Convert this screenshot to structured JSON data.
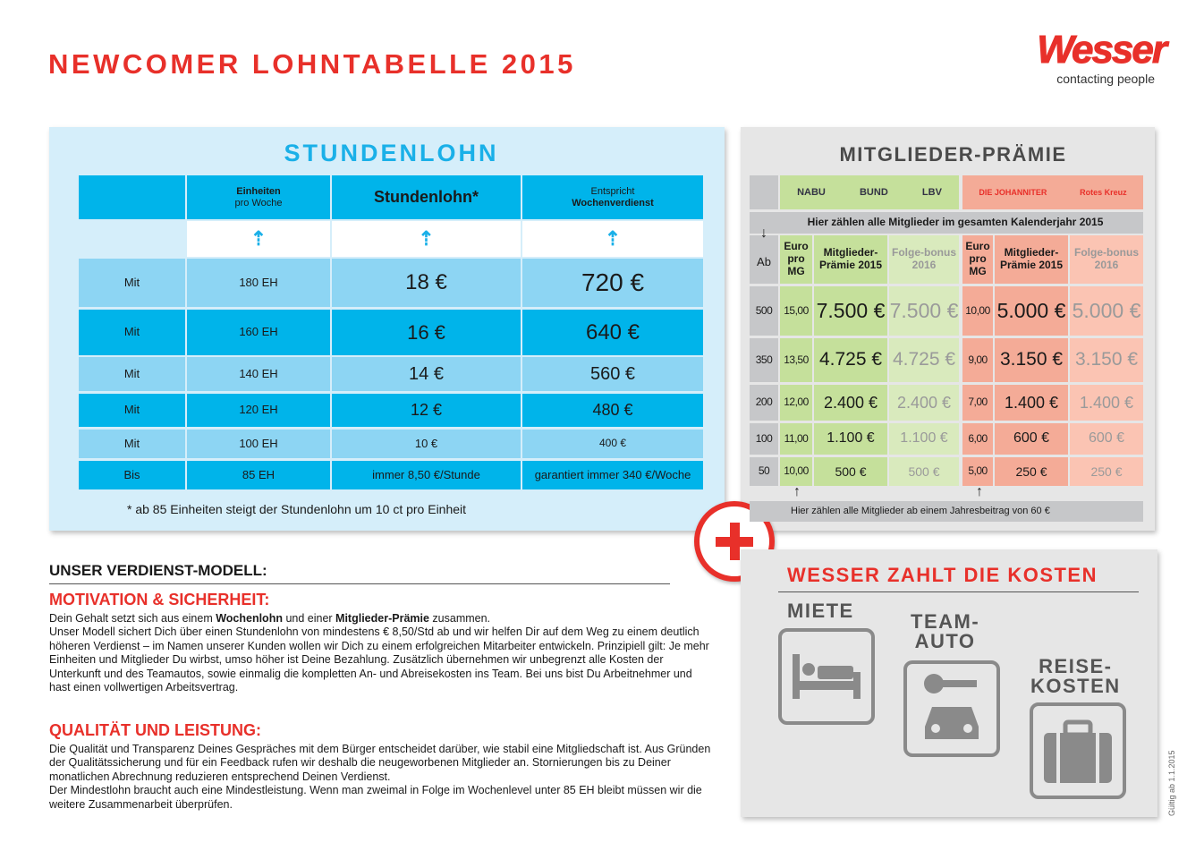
{
  "title": "NEWCOMER LOHNTABELLE 2015",
  "logo": {
    "brand": "Wesser",
    "tagline": "contacting people"
  },
  "stundenlohn": {
    "title": "STUNDENLOHN",
    "headers": {
      "einheiten_1": "Einheiten",
      "einheiten_2": "pro Woche",
      "stundenlohn": "Stundenlohn*",
      "verdienst_1": "Entspricht",
      "verdienst_2": "Wochenverdienst"
    },
    "rows": [
      {
        "label": "Mit",
        "units": "180 EH",
        "rate": "18 €",
        "weekly": "720 €"
      },
      {
        "label": "Mit",
        "units": "160 EH",
        "rate": "16 €",
        "weekly": "640 €"
      },
      {
        "label": "Mit",
        "units": "140 EH",
        "rate": "14 €",
        "weekly": "560 €"
      },
      {
        "label": "Mit",
        "units": "120 EH",
        "rate": "12 €",
        "weekly": "480 €"
      },
      {
        "label": "Mit",
        "units": "100 EH",
        "rate": "10 €",
        "weekly": "400 €"
      },
      {
        "label": "Bis",
        "units": "85 EH",
        "rate": "immer 8,50 €/Stunde",
        "weekly": "garantiert immer 340 €/Woche"
      }
    ],
    "footnote": "* ab 85 Einheiten steigt der Stundenlohn um 10 ct pro Einheit"
  },
  "praemie": {
    "title": "MITGLIEDER-PRÄMIE",
    "logos_green": [
      "NABU",
      "BUND",
      "LBV"
    ],
    "logos_red": [
      "DIE JOHANNITER",
      "Rotes Kreuz"
    ],
    "calendar_note": "Hier zählen alle Mitglieder im gesamten Kalenderjahr 2015",
    "headers": {
      "ab": "Ab",
      "euro": "Euro pro MG",
      "praemie": "Mitglieder-Prämie 2015",
      "folge": "Folge-bonus 2016"
    },
    "rows": [
      {
        "ab": "500",
        "g_euro": "15,00",
        "g_pr": "7.500 €",
        "g_fb": "7.500 €",
        "r_euro": "10,00",
        "r_pr": "5.000 €",
        "r_fb": "5.000 €"
      },
      {
        "ab": "350",
        "g_euro": "13,50",
        "g_pr": "4.725 €",
        "g_fb": "4.725 €",
        "r_euro": "9,00",
        "r_pr": "3.150 €",
        "r_fb": "3.150 €"
      },
      {
        "ab": "200",
        "g_euro": "12,00",
        "g_pr": "2.400 €",
        "g_fb": "2.400 €",
        "r_euro": "7,00",
        "r_pr": "1.400 €",
        "r_fb": "1.400 €"
      },
      {
        "ab": "100",
        "g_euro": "11,00",
        "g_pr": "1.100 €",
        "g_fb": "1.100 €",
        "r_euro": "6,00",
        "r_pr": "600 €",
        "r_fb": "600 €"
      },
      {
        "ab": "50",
        "g_euro": "10,00",
        "g_pr": "500 €",
        "g_fb": "500 €",
        "r_euro": "5,00",
        "r_pr": "250 €",
        "r_fb": "250 €"
      }
    ],
    "year_note": "Hier zählen alle Mitglieder ab einem Jahresbeitrag von 60 €"
  },
  "modell": {
    "heading": "UNSER VERDIENST-MODELL:",
    "s1_title": "MOTIVATION & SICHERHEIT:",
    "s1_a": "Dein Gehalt setzt sich aus einem ",
    "s1_b": "Wochenlohn",
    "s1_c": " und einer ",
    "s1_d": "Mitglieder-Prämie",
    "s1_e": " zusammen.",
    "s1_body": "Unser Modell sichert Dich über einen Stundenlohn von mindestens € 8,50/Std ab und wir helfen Dir auf dem Weg zu einem deutlich höheren Verdienst – im Namen unserer Kunden wollen wir Dich zu einem erfolgreichen Mitarbeiter entwickeln. Prinzipiell gilt: Je mehr Einheiten und Mitglieder Du wirbst, umso höher ist Deine Bezahlung. Zusätzlich übernehmen wir unbegrenzt alle Kosten der Unterkunft und des Teamautos, sowie einmalig die kompletten An- und Abreisekosten ins Team. Bei uns bist Du Arbeitnehmer und hast einen vollwertigen Arbeitsvertrag.",
    "s2_title": "QUALITÄT UND LEISTUNG:",
    "s2_body1": "Die Qualität und Transparenz Deines Gespräches mit dem Bürger entscheidet darüber, wie stabil eine Mitgliedschaft ist. Aus Gründen der Qualitätssicherung und für ein Feedback rufen wir deshalb die neugeworbenen Mitglieder an. Stornierungen bis zu Deiner monatlichen Abrechnung reduzieren entsprechend Deinen Verdienst.",
    "s2_body2": "Der Mindestlohn braucht auch eine Mindestleistung. Wenn man zweimal in Folge im Wochenlevel unter 85 EH bleibt müssen wir die weitere Zusammenarbeit überprüfen."
  },
  "kosten": {
    "title": "WESSER ZAHLT DIE KOSTEN",
    "miete": "MIETE",
    "auto_1": "TEAM-",
    "auto_2": "AUTO",
    "reise_1": "REISE-",
    "reise_2": "KOSTEN"
  },
  "validity": "Gültig ab 1.1.2015",
  "colors": {
    "red": "#e8302a",
    "blue": "#00b4ea",
    "light_blue": "#8dd5f3",
    "green": "#c5e09b",
    "salmon": "#f4ab97"
  }
}
